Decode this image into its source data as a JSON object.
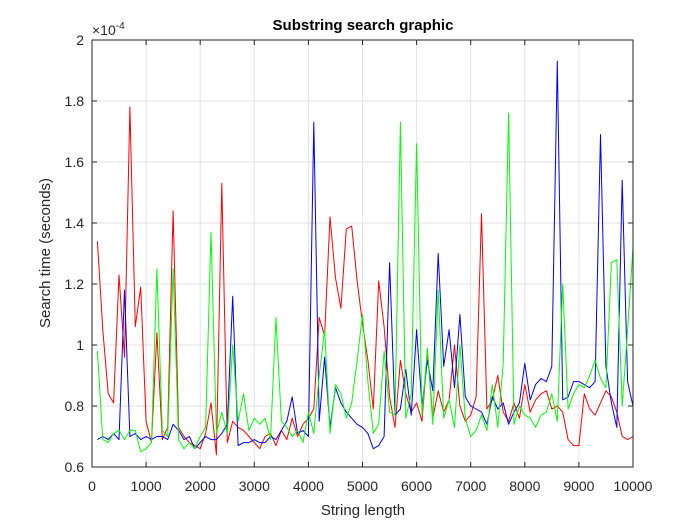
{
  "chart_data": {
    "type": "line",
    "title": "Substring search graphic",
    "xlabel": "String length",
    "ylabel": "Search time (seconds)",
    "exponent_label": "×10",
    "exponent_power": "-4",
    "xlim": [
      0,
      10000
    ],
    "ylim": [
      0.6,
      2.0
    ],
    "y_scale_factor": 0.0001,
    "grid": true,
    "xticks": [
      0,
      1000,
      2000,
      3000,
      4000,
      5000,
      6000,
      7000,
      8000,
      9000,
      10000
    ],
    "yticks": [
      0.6,
      0.8,
      1.0,
      1.2,
      1.4,
      1.6,
      1.8,
      2.0
    ],
    "ytick_labels": [
      "0.6",
      "0.8",
      "1",
      "1.2",
      "1.4",
      "1.6",
      "1.8",
      "2"
    ],
    "x": [
      100,
      200,
      300,
      400,
      500,
      600,
      700,
      800,
      900,
      1000,
      1100,
      1200,
      1300,
      1400,
      1500,
      1600,
      1700,
      1800,
      1900,
      2000,
      2100,
      2200,
      2300,
      2400,
      2500,
      2600,
      2700,
      2800,
      2900,
      3000,
      3100,
      3200,
      3300,
      3400,
      3500,
      3600,
      3700,
      3800,
      3900,
      4000,
      4100,
      4200,
      4300,
      4400,
      4500,
      4600,
      4700,
      4800,
      4900,
      5000,
      5100,
      5200,
      5300,
      5400,
      5500,
      5600,
      5700,
      5800,
      5900,
      6000,
      6100,
      6200,
      6300,
      6400,
      6500,
      6600,
      6700,
      6800,
      6900,
      7000,
      7100,
      7200,
      7300,
      7400,
      7500,
      7600,
      7700,
      7800,
      7900,
      8000,
      8100,
      8200,
      8300,
      8400,
      8500,
      8600,
      8700,
      8800,
      8900,
      9000,
      9100,
      9200,
      9300,
      9400,
      9500,
      9600,
      9700,
      9800,
      9900,
      10000
    ],
    "series": [
      {
        "color": "#ff0000",
        "values": [
          1.34,
          1.05,
          0.84,
          0.81,
          1.23,
          0.96,
          1.78,
          1.06,
          1.19,
          0.75,
          0.68,
          1.04,
          0.69,
          0.73,
          1.44,
          0.73,
          0.7,
          0.68,
          0.67,
          0.66,
          0.71,
          0.81,
          0.64,
          1.53,
          0.68,
          0.75,
          0.73,
          0.72,
          0.7,
          0.68,
          0.66,
          0.7,
          0.71,
          0.67,
          0.72,
          0.69,
          0.76,
          0.7,
          0.74,
          0.76,
          0.79,
          1.09,
          1.03,
          1.42,
          1.22,
          1.12,
          1.38,
          1.39,
          1.21,
          1.07,
          0.95,
          0.79,
          1.21,
          1.06,
          0.83,
          0.73,
          0.95,
          0.84,
          0.78,
          0.81,
          0.75,
          0.98,
          0.76,
          0.85,
          0.78,
          0.82,
          1.0,
          0.8,
          0.75,
          0.77,
          0.83,
          1.43,
          0.79,
          0.82,
          0.9,
          0.78,
          0.75,
          0.81,
          0.76,
          0.87,
          0.78,
          0.82,
          0.84,
          0.85,
          0.79,
          0.8,
          0.78,
          0.69,
          0.67,
          0.67,
          0.84,
          0.79,
          0.77,
          0.81,
          0.85,
          0.83,
          0.78,
          0.7,
          0.69,
          0.7
        ]
      },
      {
        "color": "#0000ff",
        "values": [
          0.69,
          0.7,
          0.69,
          0.71,
          0.69,
          1.18,
          0.7,
          0.71,
          0.69,
          0.7,
          0.69,
          0.7,
          0.7,
          0.69,
          0.74,
          0.72,
          0.69,
          0.7,
          0.66,
          0.68,
          0.7,
          0.69,
          0.69,
          0.71,
          0.74,
          1.16,
          0.67,
          0.68,
          0.68,
          0.69,
          0.68,
          0.68,
          0.7,
          0.69,
          0.72,
          0.75,
          0.83,
          0.71,
          0.72,
          0.7,
          1.73,
          0.75,
          0.96,
          0.73,
          0.86,
          0.81,
          0.78,
          0.76,
          0.74,
          0.73,
          0.71,
          0.66,
          0.67,
          0.7,
          1.27,
          0.77,
          0.79,
          0.92,
          0.77,
          1.05,
          0.8,
          0.95,
          0.85,
          1.3,
          0.93,
          1.05,
          0.86,
          1.1,
          0.83,
          0.8,
          0.79,
          0.78,
          0.74,
          0.83,
          0.79,
          0.81,
          0.74,
          0.78,
          0.81,
          0.94,
          0.82,
          0.87,
          0.89,
          0.88,
          0.93,
          1.93,
          0.82,
          0.83,
          0.88,
          0.88,
          0.87,
          0.86,
          0.88,
          1.69,
          0.93,
          0.81,
          0.73,
          1.54,
          0.88,
          0.8
        ]
      },
      {
        "color": "#00ff00",
        "values": [
          0.98,
          0.69,
          0.68,
          0.71,
          0.72,
          0.69,
          0.72,
          0.72,
          0.65,
          0.66,
          0.68,
          1.25,
          0.72,
          0.7,
          1.25,
          0.69,
          0.66,
          0.68,
          0.66,
          0.7,
          0.73,
          1.37,
          0.71,
          0.78,
          0.71,
          1.0,
          0.75,
          0.84,
          0.72,
          0.76,
          0.74,
          0.76,
          0.69,
          1.09,
          0.75,
          0.73,
          0.7,
          0.72,
          0.68,
          0.78,
          0.71,
          0.9,
          1.05,
          0.71,
          0.87,
          0.84,
          0.76,
          0.81,
          0.95,
          1.1,
          0.88,
          0.71,
          0.74,
          0.98,
          0.78,
          0.77,
          1.73,
          0.76,
          0.84,
          1.66,
          0.77,
          0.99,
          0.74,
          1.18,
          0.76,
          0.82,
          0.73,
          1.0,
          0.76,
          0.7,
          0.72,
          0.77,
          0.72,
          0.87,
          0.73,
          0.94,
          1.76,
          0.74,
          0.8,
          0.77,
          0.76,
          0.73,
          0.77,
          0.78,
          0.84,
          0.75,
          1.2,
          0.79,
          0.84,
          0.87,
          0.86,
          0.9,
          0.95,
          0.89,
          0.86,
          1.27,
          1.28,
          0.8,
          1.05,
          1.32
        ]
      }
    ]
  }
}
